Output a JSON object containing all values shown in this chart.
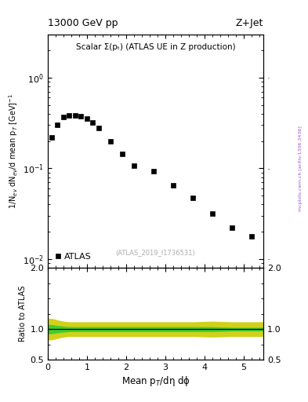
{
  "title_left": "13000 GeV pp",
  "title_right": "Z+Jet",
  "plot_title": "Scalar Σ(pₜ) (ATLAS UE in Z production)",
  "ylabel_main": "1/N$_{ev}$ dN$_{ev}$/d mean p$_T$ [GeV]$^{-1}$",
  "ylabel_ratio": "Ratio to ATLAS",
  "xlabel": "Mean p$_T$/dη dϕ",
  "watermark": "(ATLAS_2019_I1736531)",
  "right_label": "mcplots.cern.ch [arXiv:1306.3436]",
  "data_x": [
    0.1,
    0.25,
    0.4,
    0.55,
    0.7,
    0.85,
    1.0,
    1.15,
    1.3,
    1.6,
    1.9,
    2.2,
    2.7,
    3.2,
    3.7,
    4.2,
    4.7,
    5.2
  ],
  "data_y": [
    0.22,
    0.3,
    0.37,
    0.385,
    0.385,
    0.375,
    0.35,
    0.32,
    0.28,
    0.2,
    0.145,
    0.108,
    0.093,
    0.065,
    0.047,
    0.032,
    0.022,
    0.018
  ],
  "ylim_main": [
    0.008,
    3.0
  ],
  "xlim": [
    0,
    5.5
  ],
  "ratio_x": [
    0.0,
    0.15,
    0.25,
    0.4,
    0.55,
    0.7,
    0.85,
    1.0,
    1.15,
    1.3,
    1.6,
    1.9,
    2.2,
    2.7,
    3.2,
    3.7,
    4.2,
    4.7,
    5.2,
    5.5
  ],
  "ratio_green_lo": [
    0.92,
    0.93,
    0.94,
    0.95,
    0.96,
    0.96,
    0.96,
    0.96,
    0.96,
    0.96,
    0.96,
    0.96,
    0.96,
    0.96,
    0.96,
    0.96,
    0.96,
    0.97,
    0.97,
    0.97
  ],
  "ratio_green_hi": [
    1.08,
    1.07,
    1.06,
    1.05,
    1.04,
    1.04,
    1.04,
    1.04,
    1.04,
    1.04,
    1.04,
    1.04,
    1.04,
    1.04,
    1.04,
    1.04,
    1.04,
    1.03,
    1.03,
    1.03
  ],
  "ratio_yellow_lo": [
    0.82,
    0.83,
    0.85,
    0.87,
    0.88,
    0.88,
    0.88,
    0.88,
    0.88,
    0.88,
    0.88,
    0.88,
    0.88,
    0.88,
    0.88,
    0.88,
    0.87,
    0.88,
    0.88,
    0.88
  ],
  "ratio_yellow_hi": [
    1.18,
    1.17,
    1.15,
    1.13,
    1.12,
    1.12,
    1.12,
    1.12,
    1.12,
    1.12,
    1.12,
    1.12,
    1.12,
    1.12,
    1.12,
    1.12,
    1.13,
    1.12,
    1.12,
    1.12
  ],
  "ratio_ylim": [
    0.5,
    2.0
  ],
  "ratio_yticks": [
    0.5,
    1.0,
    2.0
  ],
  "marker_color": "#000000",
  "marker_size": 5,
  "green_color": "#33cc33",
  "yellow_color": "#cccc00",
  "legend_label": "ATLAS",
  "right_label_color": "#9955bb"
}
